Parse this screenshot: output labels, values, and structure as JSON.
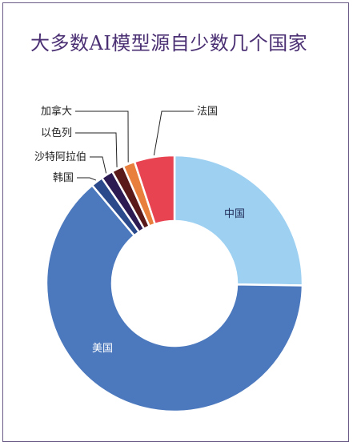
{
  "chart_data": {
    "type": "pie",
    "title": "大多数AI模型源自少数几个国家",
    "categories": [
      "中国",
      "美国",
      "韩国",
      "沙特阿拉伯",
      "以色列",
      "加拿大",
      "法国"
    ],
    "values": [
      25,
      63,
      1.5,
      1.5,
      1.5,
      1.5,
      5
    ],
    "colors": [
      "#9ed0f2",
      "#4c78bd",
      "#2b4a8c",
      "#2c1a52",
      "#5a1a1a",
      "#e87f3c",
      "#e84350"
    ],
    "label_style": [
      "inside",
      "inside",
      "callout",
      "callout",
      "callout",
      "callout",
      "callout"
    ],
    "donut": true
  }
}
